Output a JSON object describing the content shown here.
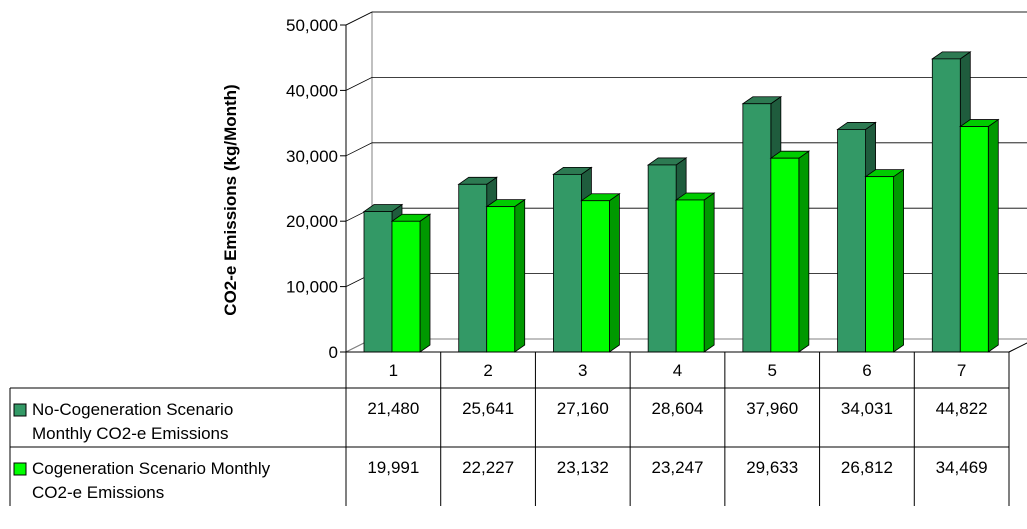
{
  "chart_data": {
    "type": "bar",
    "style": "3d-clustered-column-with-data-table",
    "ylabel": "CO2-e Emissions (kg/Month)",
    "xlabel": "",
    "ylim": [
      0,
      50000
    ],
    "yticks": [
      "0",
      "10,000",
      "20,000",
      "30,000",
      "40,000",
      "50,000"
    ],
    "grid": true,
    "legend": "in-data-table",
    "categories": [
      "1",
      "2",
      "3",
      "4",
      "5",
      "6",
      "7"
    ],
    "series": [
      {
        "name_line1": "No-Cogeneration Scenario",
        "name_line2": "Monthly CO2-e Emissions",
        "values": [
          21480,
          25641,
          27160,
          28604,
          37960,
          34031,
          44822
        ],
        "labels": [
          "21,480",
          "25,641",
          "27,160",
          "28,604",
          "37,960",
          "34,031",
          "44,822"
        ],
        "colors": {
          "front": "#339966",
          "side": "#1f5c3d",
          "top": "#2d7a52"
        }
      },
      {
        "name_line1": "Cogeneration Scenario Monthly",
        "name_line2": "CO2-e Emissions",
        "values": [
          19991,
          22227,
          23132,
          23247,
          29633,
          26812,
          34469
        ],
        "labels": [
          "19,991",
          "22,227",
          "23,132",
          "23,247",
          "29,633",
          "26,812",
          "34,469"
        ],
        "colors": {
          "front": "#00ff00",
          "side": "#009900",
          "top": "#00cc00"
        }
      }
    ]
  }
}
